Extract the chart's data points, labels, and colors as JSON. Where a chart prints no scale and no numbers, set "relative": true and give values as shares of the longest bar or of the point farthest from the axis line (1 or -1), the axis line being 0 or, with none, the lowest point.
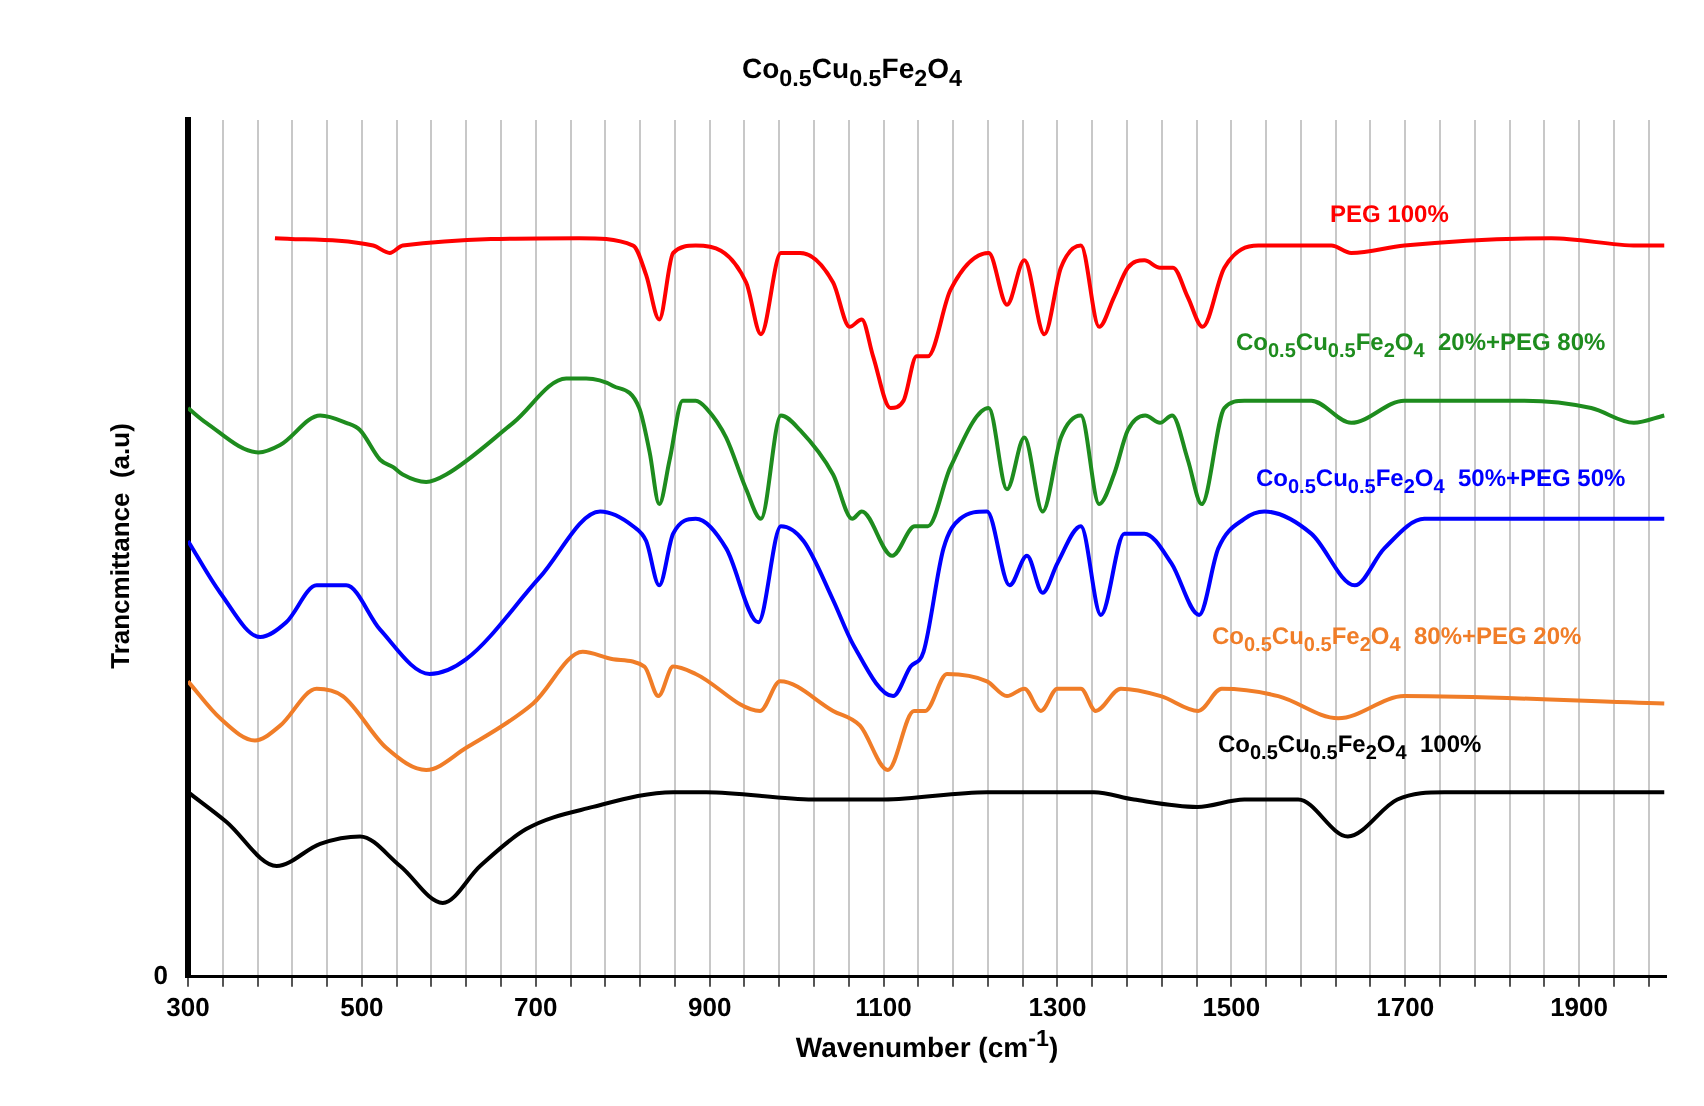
{
  "chart_data": {
    "type": "line",
    "title": "Co$_{0.5}$Cu$_{0.5}$Fe$_{2}$O$_{4}$",
    "xlabel": "Wavenumber (cm$^{-1}$)",
    "ylabel": "Trancmittance  (a.u)",
    "relative": true,
    "grid": "x",
    "legend": false,
    "marker": "none",
    "line_style": "solid",
    "annotations": [
      "0"
    ],
    "xlim": [
      300,
      2000
    ],
    "xticks": [
      300,
      {
        "value": 340,
        "label": null
      },
      {
        "value": 380,
        "label": null
      },
      {
        "value": 420,
        "label": null
      },
      {
        "value": 460,
        "label": null
      },
      500,
      {
        "value": 540,
        "label": null
      },
      {
        "value": 580,
        "label": null
      },
      {
        "value": 620,
        "label": null
      },
      {
        "value": 660,
        "label": null
      },
      700,
      {
        "value": 740,
        "label": null
      },
      {
        "value": 780,
        "label": null
      },
      {
        "value": 820,
        "label": null
      },
      {
        "value": 860,
        "label": null
      },
      900,
      {
        "value": 940,
        "label": null
      },
      {
        "value": 980,
        "label": null
      },
      {
        "value": 1020,
        "label": null
      },
      {
        "value": 1060,
        "label": null
      },
      1100,
      {
        "value": 1140,
        "label": null
      },
      {
        "value": 1180,
        "label": null
      },
      {
        "value": 1220,
        "label": null
      },
      {
        "value": 1260,
        "label": null
      },
      1300,
      {
        "value": 1340,
        "label": null
      },
      {
        "value": 1380,
        "label": null
      },
      {
        "value": 1420,
        "label": null
      },
      {
        "value": 1460,
        "label": null
      },
      1500,
      {
        "value": 1540,
        "label": null
      },
      {
        "value": 1580,
        "label": null
      },
      {
        "value": 1620,
        "label": null
      },
      {
        "value": 1660,
        "label": null
      },
      1700,
      {
        "value": 1740,
        "label": null
      },
      {
        "value": 1780,
        "label": null
      },
      {
        "value": 1820,
        "label": null
      },
      {
        "value": 1860,
        "label": null
      },
      1900,
      {
        "value": 1940,
        "label": null
      },
      {
        "value": 1980,
        "label": null
      }
    ],
    "series": [
      {
        "name": "PEG 100%",
        "color": "#ff0000",
        "x": [
          400,
          513,
          532,
          547,
          750,
          812,
          827,
          842,
          858,
          884,
          942,
          959,
          982,
          1004,
          1042,
          1061,
          1075,
          1088,
          1108,
          1123,
          1138,
          1151,
          1177,
          1221,
          1242,
          1262,
          1285,
          1304,
          1327,
          1348,
          1365,
          1381,
          1400,
          1418,
          1433,
          1450,
          1467,
          1492,
          1531,
          1615,
          1638,
          1699,
          1868,
          1967,
          1998
        ],
        "values": [
          1.0,
          0.99,
          0.98,
          0.99,
          1.0,
          0.99,
          0.95,
          0.89,
          0.98,
          0.99,
          0.94,
          0.87,
          0.98,
          0.98,
          0.94,
          0.88,
          0.89,
          0.84,
          0.77,
          0.78,
          0.84,
          0.84,
          0.93,
          0.98,
          0.91,
          0.97,
          0.87,
          0.96,
          0.99,
          0.88,
          0.92,
          0.96,
          0.97,
          0.96,
          0.96,
          0.92,
          0.88,
          0.96,
          0.99,
          0.99,
          0.98,
          0.99,
          1.0,
          0.99,
          0.99
        ]
      },
      {
        "name": "Co$_{0.5}$Cu$_{0.5}$Fe$_{2}$O$_{4}$  20%+PEG 80%",
        "color": "#1e8c1e",
        "x": [
          300,
          321,
          381,
          406,
          452,
          482,
          498,
          521,
          536,
          547,
          574,
          597,
          674,
          735,
          758,
          789,
          819,
          831,
          842,
          854,
          869,
          884,
          896,
          919,
          942,
          959,
          982,
          1004,
          1042,
          1064,
          1075,
          1110,
          1136,
          1151,
          1177,
          1221,
          1242,
          1262,
          1283,
          1304,
          1327,
          1348,
          1365,
          1381,
          1401,
          1418,
          1432,
          1450,
          1466,
          1492,
          1515,
          1592,
          1638,
          1699,
          1814,
          1837,
          1914,
          1963,
          1998
        ],
        "values": [
          0.77,
          0.75,
          0.71,
          0.72,
          0.76,
          0.75,
          0.74,
          0.7,
          0.69,
          0.68,
          0.67,
          0.68,
          0.75,
          0.81,
          0.81,
          0.8,
          0.77,
          0.71,
          0.64,
          0.7,
          0.78,
          0.78,
          0.77,
          0.73,
          0.66,
          0.62,
          0.76,
          0.74,
          0.68,
          0.62,
          0.63,
          0.57,
          0.61,
          0.61,
          0.69,
          0.77,
          0.66,
          0.73,
          0.63,
          0.73,
          0.76,
          0.64,
          0.68,
          0.74,
          0.76,
          0.75,
          0.76,
          0.7,
          0.64,
          0.77,
          0.78,
          0.78,
          0.75,
          0.78,
          0.78,
          0.78,
          0.77,
          0.75,
          0.76
        ]
      },
      {
        "name": "Co$_{0.5}$Cu$_{0.5}$Fe$_{2}$O$_{4}$  50%+PEG 50%",
        "color": "#0000ff",
        "x": [
          300,
          337,
          383,
          413,
          448,
          482,
          521,
          578,
          620,
          704,
          774,
          812,
          827,
          842,
          858,
          884,
          919,
          956,
          982,
          1008,
          1042,
          1065,
          1111,
          1131,
          1146,
          1169,
          1188,
          1219,
          1245,
          1265,
          1283,
          1300,
          1327,
          1350,
          1377,
          1400,
          1431,
          1463,
          1485,
          1515,
          1538,
          1592,
          1642,
          1676,
          1722,
          1898,
          1960,
          1998
        ],
        "values": [
          0.59,
          0.52,
          0.46,
          0.48,
          0.53,
          0.53,
          0.47,
          0.41,
          0.43,
          0.54,
          0.63,
          0.61,
          0.59,
          0.53,
          0.6,
          0.62,
          0.58,
          0.48,
          0.61,
          0.59,
          0.51,
          0.45,
          0.38,
          0.42,
          0.44,
          0.58,
          0.62,
          0.63,
          0.53,
          0.57,
          0.52,
          0.56,
          0.61,
          0.49,
          0.6,
          0.6,
          0.56,
          0.49,
          0.58,
          0.62,
          0.63,
          0.6,
          0.53,
          0.58,
          0.62,
          0.62,
          0.62,
          0.62
        ]
      },
      {
        "name": "Co$_{0.5}$Cu$_{0.5}$Fe$_{2}$O$_{4}$  80%+PEG 20%",
        "color": "#f07d28",
        "x": [
          300,
          337,
          377,
          406,
          448,
          478,
          528,
          574,
          620,
          697,
          754,
          789,
          825,
          841,
          858,
          884,
          958,
          981,
          1042,
          1073,
          1105,
          1135,
          1148,
          1173,
          1219,
          1242,
          1262,
          1281,
          1300,
          1327,
          1344,
          1373,
          1419,
          1462,
          1489,
          1554,
          1623,
          1699,
          1998
        ],
        "values": [
          0.4,
          0.35,
          0.32,
          0.34,
          0.39,
          0.38,
          0.31,
          0.28,
          0.31,
          0.37,
          0.44,
          0.43,
          0.42,
          0.38,
          0.42,
          0.41,
          0.36,
          0.4,
          0.36,
          0.34,
          0.28,
          0.36,
          0.36,
          0.41,
          0.4,
          0.38,
          0.39,
          0.36,
          0.39,
          0.39,
          0.36,
          0.39,
          0.38,
          0.36,
          0.39,
          0.38,
          0.35,
          0.38,
          0.37
        ]
      },
      {
        "name": "Co$_{0.5}$Cu$_{0.5}$Fe$_{2}$O$_{4}$  100%",
        "color": "#000000",
        "x": [
          300,
          344,
          402,
          452,
          498,
          544,
          593,
          636,
          689,
          766,
          858,
          896,
          1019,
          1100,
          1219,
          1342,
          1388,
          1461,
          1515,
          1577,
          1634,
          1691,
          1745,
          1998
        ],
        "values": [
          0.25,
          0.21,
          0.15,
          0.18,
          0.19,
          0.15,
          0.1,
          0.15,
          0.2,
          0.23,
          0.25,
          0.25,
          0.24,
          0.24,
          0.25,
          0.25,
          0.24,
          0.23,
          0.24,
          0.24,
          0.19,
          0.24,
          0.25,
          0.25
        ]
      }
    ]
  }
}
